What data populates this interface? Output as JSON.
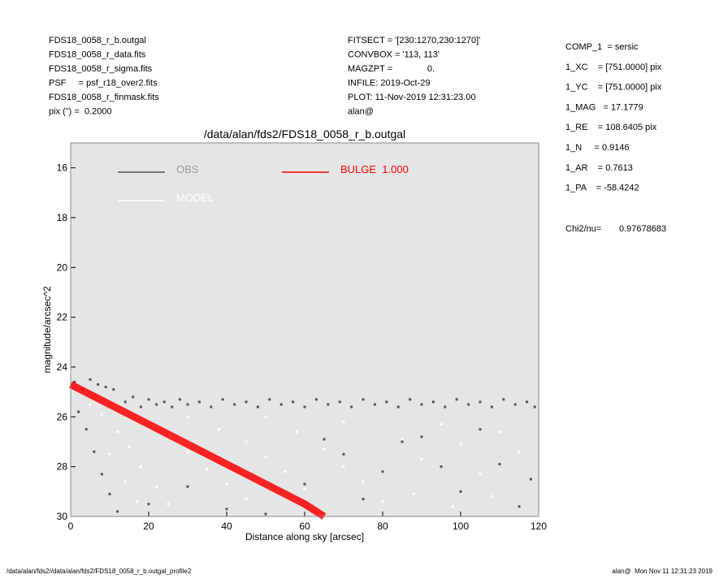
{
  "header": {
    "left": [
      "FDS18_0058_r_b.outgal",
      "FDS18_0058_r_data.fits",
      "FDS18_0058_r_sigma.fits",
      "PSF     = psf_r18_over2.fits",
      "FDS18_0058_r_finmask.fits",
      "pix (\") =  0.2000"
    ],
    "middle": [
      "FITSECT = '[230:1270,230:1270]'",
      "CONVBOX = '113, 113'",
      "MAGZPT =              0.",
      "INFILE: 2019-Oct-29",
      "PLOT: 11-Nov-2019 12:31:23.00",
      "alan@"
    ],
    "right": [
      "COMP_1  = sersic",
      "1_XC    = [751.0000] pix",
      "1_YC    = [751.0000] pix",
      "1_MAG   = 17.1779",
      "1_RE    = 108.6405 pix",
      "1_N     = 0.9146",
      "1_AR    = 0.7613",
      "1_PA    = -58.4242"
    ],
    "chi2": {
      "label": "Chi2/nu=",
      "value": "0.97678683"
    }
  },
  "footer": {
    "left": "/data/alan/fds2//data/alan/fds2/FDS18_0058_r_b.outgal_profile2",
    "right": "alan@  Mon Nov 11 12:31:23 2019"
  },
  "chart_data": {
    "type": "scatter",
    "title": "/data/alan/fds2/FDS18_0058_r_b.outgal",
    "xlabel": "Distance along sky [arcsec]",
    "ylabel": "magnitude/arcsec^2",
    "xlim": [
      0,
      120
    ],
    "ylim": [
      15,
      30
    ],
    "invert_y": true,
    "xticks": [
      0,
      20,
      40,
      60,
      80,
      100,
      120
    ],
    "yticks": [
      16,
      18,
      20,
      22,
      24,
      26,
      28,
      30
    ],
    "background": "#e5e5e5",
    "series": [
      {
        "name": "OBS",
        "color": "#555555",
        "x": [
          1,
          3,
          5,
          7,
          9,
          11,
          2,
          4,
          6,
          8,
          10,
          12,
          14,
          16,
          18,
          20,
          22,
          24,
          26,
          28,
          30,
          33,
          36,
          39,
          42,
          45,
          48,
          51,
          54,
          57,
          60,
          63,
          66,
          69,
          72,
          75,
          78,
          81,
          84,
          87,
          90,
          93,
          96,
          99,
          102,
          105,
          108,
          111,
          114,
          117,
          119,
          20,
          30,
          40,
          70,
          80,
          90,
          100,
          110,
          118,
          115,
          105,
          75,
          85,
          95,
          60,
          50,
          65
        ],
        "values": [
          24.6,
          24.9,
          24.5,
          24.7,
          24.8,
          24.9,
          25.8,
          26.5,
          27.4,
          28.3,
          29.1,
          29.8,
          25.4,
          25.2,
          25.6,
          25.3,
          25.5,
          25.4,
          25.6,
          25.3,
          25.5,
          25.4,
          25.6,
          25.3,
          25.5,
          25.4,
          25.6,
          25.3,
          25.5,
          25.4,
          25.6,
          25.3,
          25.5,
          25.4,
          25.6,
          25.3,
          25.5,
          25.4,
          25.6,
          25.3,
          25.5,
          25.4,
          25.6,
          25.3,
          25.5,
          25.4,
          25.6,
          25.3,
          25.5,
          25.4,
          25.6,
          29.5,
          28.8,
          29.7,
          27.5,
          28.2,
          26.8,
          29.0,
          27.9,
          28.5,
          29.6,
          26.5,
          29.3,
          27.0,
          28.0,
          28.7,
          29.9,
          26.9
        ]
      },
      {
        "name": "MODEL",
        "color": "#ffffff",
        "x": [
          5,
          8,
          12,
          15,
          18,
          22,
          25,
          10,
          14,
          17,
          20,
          25,
          30,
          35,
          40,
          45,
          30,
          38,
          45,
          50,
          55,
          60,
          62,
          50,
          58,
          65,
          70,
          75,
          80,
          70,
          85,
          90,
          95,
          100,
          105,
          110,
          115,
          88,
          98,
          108
        ],
        "values": [
          25.5,
          25.9,
          26.6,
          27.2,
          28.0,
          28.8,
          29.5,
          27.5,
          28.6,
          29.4,
          26.2,
          26.8,
          27.4,
          28.1,
          28.7,
          29.3,
          26.0,
          26.5,
          27.0,
          27.6,
          28.2,
          28.9,
          29.6,
          26.0,
          26.6,
          27.3,
          28.0,
          28.6,
          29.4,
          26.2,
          26.9,
          27.7,
          26.3,
          27.1,
          28.3,
          26.6,
          27.4,
          29.1,
          29.6,
          29.2
        ]
      },
      {
        "name": "BULGE  1.000",
        "color": "#ff0000",
        "type": "line",
        "x": [
          0,
          10,
          20,
          30,
          40,
          50,
          60,
          65
        ],
        "values": [
          24.7,
          25.5,
          26.3,
          27.1,
          27.9,
          28.7,
          29.5,
          30
        ]
      }
    ]
  }
}
